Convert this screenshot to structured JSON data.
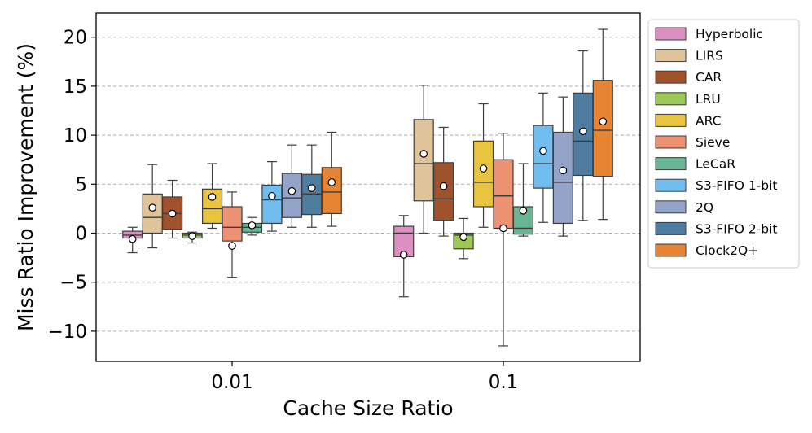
{
  "chart_data": {
    "type": "box",
    "xlabel": "Cache Size Ratio",
    "ylabel": "Miss Ratio Improvement (%)",
    "categories": [
      "0.01",
      "0.1"
    ],
    "ylim": [
      -13,
      22.6
    ],
    "yticks": [
      -10,
      -5,
      0,
      5,
      10,
      15,
      20
    ],
    "ytick_labels": [
      "−10",
      "−5",
      "0",
      "5",
      "10",
      "15",
      "20"
    ],
    "grid": "y-dashed",
    "legend_position": "right",
    "series": [
      {
        "name": "Hyperbolic",
        "color": "#dd8fc1",
        "stats": [
          {
            "whislo": -2.0,
            "q1": -0.5,
            "med": -0.2,
            "q3": 0.2,
            "whishi": 0.6,
            "mean": -0.6
          },
          {
            "whislo": -6.5,
            "q1": -2.4,
            "med": 0.0,
            "q3": 0.7,
            "whishi": 1.8,
            "mean": -2.2
          }
        ]
      },
      {
        "name": "LIRS",
        "color": "#dfc39a",
        "stats": [
          {
            "whislo": -1.5,
            "q1": 0.0,
            "med": 1.6,
            "q3": 4.0,
            "whishi": 7.0,
            "mean": 2.6
          },
          {
            "whislo": 0.0,
            "q1": 3.3,
            "med": 7.1,
            "q3": 11.6,
            "whishi": 15.1,
            "mean": 8.1
          }
        ]
      },
      {
        "name": "CAR",
        "color": "#a0522d",
        "stats": [
          {
            "whislo": -0.5,
            "q1": 0.4,
            "med": 2.0,
            "q3": 3.7,
            "whishi": 5.4,
            "mean": 2.0
          },
          {
            "whislo": -0.3,
            "q1": 1.3,
            "med": 3.5,
            "q3": 7.2,
            "whishi": 10.8,
            "mean": 4.8
          }
        ]
      },
      {
        "name": "LRU",
        "color": "#9bc857",
        "stats": [
          {
            "whislo": -1.0,
            "q1": -0.5,
            "med": -0.2,
            "q3": 0.0,
            "whishi": 0.1,
            "mean": -0.3
          },
          {
            "whislo": -2.6,
            "q1": -1.6,
            "med": -0.2,
            "q3": 0.0,
            "whishi": 1.5,
            "mean": -0.4
          }
        ]
      },
      {
        "name": "ARC",
        "color": "#e8c441",
        "stats": [
          {
            "whislo": 0.5,
            "q1": 1.0,
            "med": 2.5,
            "q3": 4.5,
            "whishi": 7.1,
            "mean": 3.7
          },
          {
            "whislo": 0.6,
            "q1": 2.7,
            "med": 5.2,
            "q3": 9.4,
            "whishi": 13.2,
            "mean": 6.6
          }
        ]
      },
      {
        "name": "Sieve",
        "color": "#ec9272",
        "stats": [
          {
            "whislo": -4.5,
            "q1": -0.8,
            "med": 0.6,
            "q3": 2.7,
            "whishi": 4.2,
            "mean": -1.3
          },
          {
            "whislo": -11.5,
            "q1": 0.5,
            "med": 3.8,
            "q3": 7.5,
            "whishi": 10.2,
            "mean": 0.5
          }
        ]
      },
      {
        "name": "LeCaR",
        "color": "#6ab593",
        "stats": [
          {
            "whislo": -0.2,
            "q1": 0.1,
            "med": 0.6,
            "q3": 1.0,
            "whishi": 1.6,
            "mean": 0.8
          },
          {
            "whislo": -0.3,
            "q1": -0.1,
            "med": 0.5,
            "q3": 2.7,
            "whishi": 7.1,
            "mean": 2.3
          }
        ]
      },
      {
        "name": "S3-FIFO 1-bit",
        "color": "#72bdef",
        "stats": [
          {
            "whislo": 0.2,
            "q1": 1.0,
            "med": 3.4,
            "q3": 4.9,
            "whishi": 7.3,
            "mean": 3.8
          },
          {
            "whislo": 1.1,
            "q1": 4.6,
            "med": 7.1,
            "q3": 11.0,
            "whishi": 14.3,
            "mean": 8.4
          }
        ]
      },
      {
        "name": "2Q",
        "color": "#94a3c8",
        "stats": [
          {
            "whislo": 0.6,
            "q1": 1.6,
            "med": 3.6,
            "q3": 6.1,
            "whishi": 9.0,
            "mean": 4.3
          },
          {
            "whislo": -0.3,
            "q1": 1.0,
            "med": 5.2,
            "q3": 10.3,
            "whishi": 13.9,
            "mean": 6.4
          }
        ]
      },
      {
        "name": "S3-FIFO 2-bit",
        "color": "#4f7da0",
        "stats": [
          {
            "whislo": 0.6,
            "q1": 1.9,
            "med": 4.0,
            "q3": 6.0,
            "whishi": 9.0,
            "mean": 4.6
          },
          {
            "whislo": 1.3,
            "q1": 5.9,
            "med": 9.4,
            "q3": 14.3,
            "whishi": 18.6,
            "mean": 10.4
          }
        ]
      },
      {
        "name": "Clock2Q+",
        "color": "#e58534",
        "stats": [
          {
            "whislo": 0.7,
            "q1": 2.0,
            "med": 4.2,
            "q3": 6.7,
            "whishi": 10.3,
            "mean": 5.2
          },
          {
            "whislo": 1.4,
            "q1": 5.8,
            "med": 10.5,
            "q3": 15.6,
            "whishi": 20.8,
            "mean": 11.4
          }
        ]
      }
    ]
  }
}
